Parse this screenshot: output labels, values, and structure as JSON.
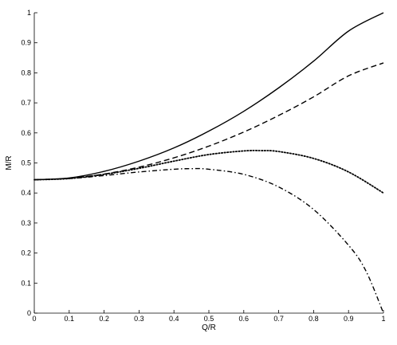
{
  "chart_data": {
    "type": "line",
    "xlabel": "Q/R",
    "ylabel": "M/R",
    "xlim": [
      0,
      1
    ],
    "ylim": [
      0,
      1
    ],
    "x_ticks": [
      "0",
      "0.1",
      "0.2",
      "0.3",
      "0.4",
      "0.5",
      "0.6",
      "0.7",
      "0.8",
      "0.9",
      "1"
    ],
    "y_ticks": [
      "0",
      "0.1",
      "0.2",
      "0.3",
      "0.4",
      "0.5",
      "0.6",
      "0.7",
      "0.8",
      "0.9",
      "1"
    ],
    "grid": false,
    "legend": "none",
    "series": [
      {
        "style": "solid",
        "color": "#000000",
        "x": [
          0,
          0.1,
          0.2,
          0.3,
          0.4,
          0.5,
          0.6,
          0.7,
          0.8,
          0.9,
          1.0
        ],
        "y": [
          0.444,
          0.45,
          0.472,
          0.506,
          0.55,
          0.606,
          0.672,
          0.75,
          0.839,
          0.939,
          1.0
        ]
      },
      {
        "style": "dashed",
        "color": "#000000",
        "x": [
          0,
          0.1,
          0.2,
          0.3,
          0.4,
          0.5,
          0.6,
          0.7,
          0.8,
          0.9,
          1.0
        ],
        "y": [
          0.444,
          0.449,
          0.463,
          0.486,
          0.517,
          0.556,
          0.603,
          0.658,
          0.72,
          0.79,
          0.833
        ]
      },
      {
        "style": "dotted",
        "color": "#000000",
        "x": [
          0,
          0.1,
          0.2,
          0.3,
          0.4,
          0.5,
          0.6,
          0.65,
          0.7,
          0.8,
          0.9,
          1.0
        ],
        "y": [
          0.444,
          0.448,
          0.462,
          0.482,
          0.506,
          0.528,
          0.54,
          0.541,
          0.538,
          0.515,
          0.47,
          0.4
        ]
      },
      {
        "style": "dashdot",
        "color": "#000000",
        "x": [
          0,
          0.1,
          0.2,
          0.3,
          0.4,
          0.45,
          0.5,
          0.6,
          0.7,
          0.8,
          0.9,
          0.95,
          1.0
        ],
        "y": [
          0.444,
          0.448,
          0.458,
          0.47,
          0.479,
          0.481,
          0.479,
          0.462,
          0.42,
          0.345,
          0.226,
          0.14,
          0.0
        ]
      }
    ]
  }
}
